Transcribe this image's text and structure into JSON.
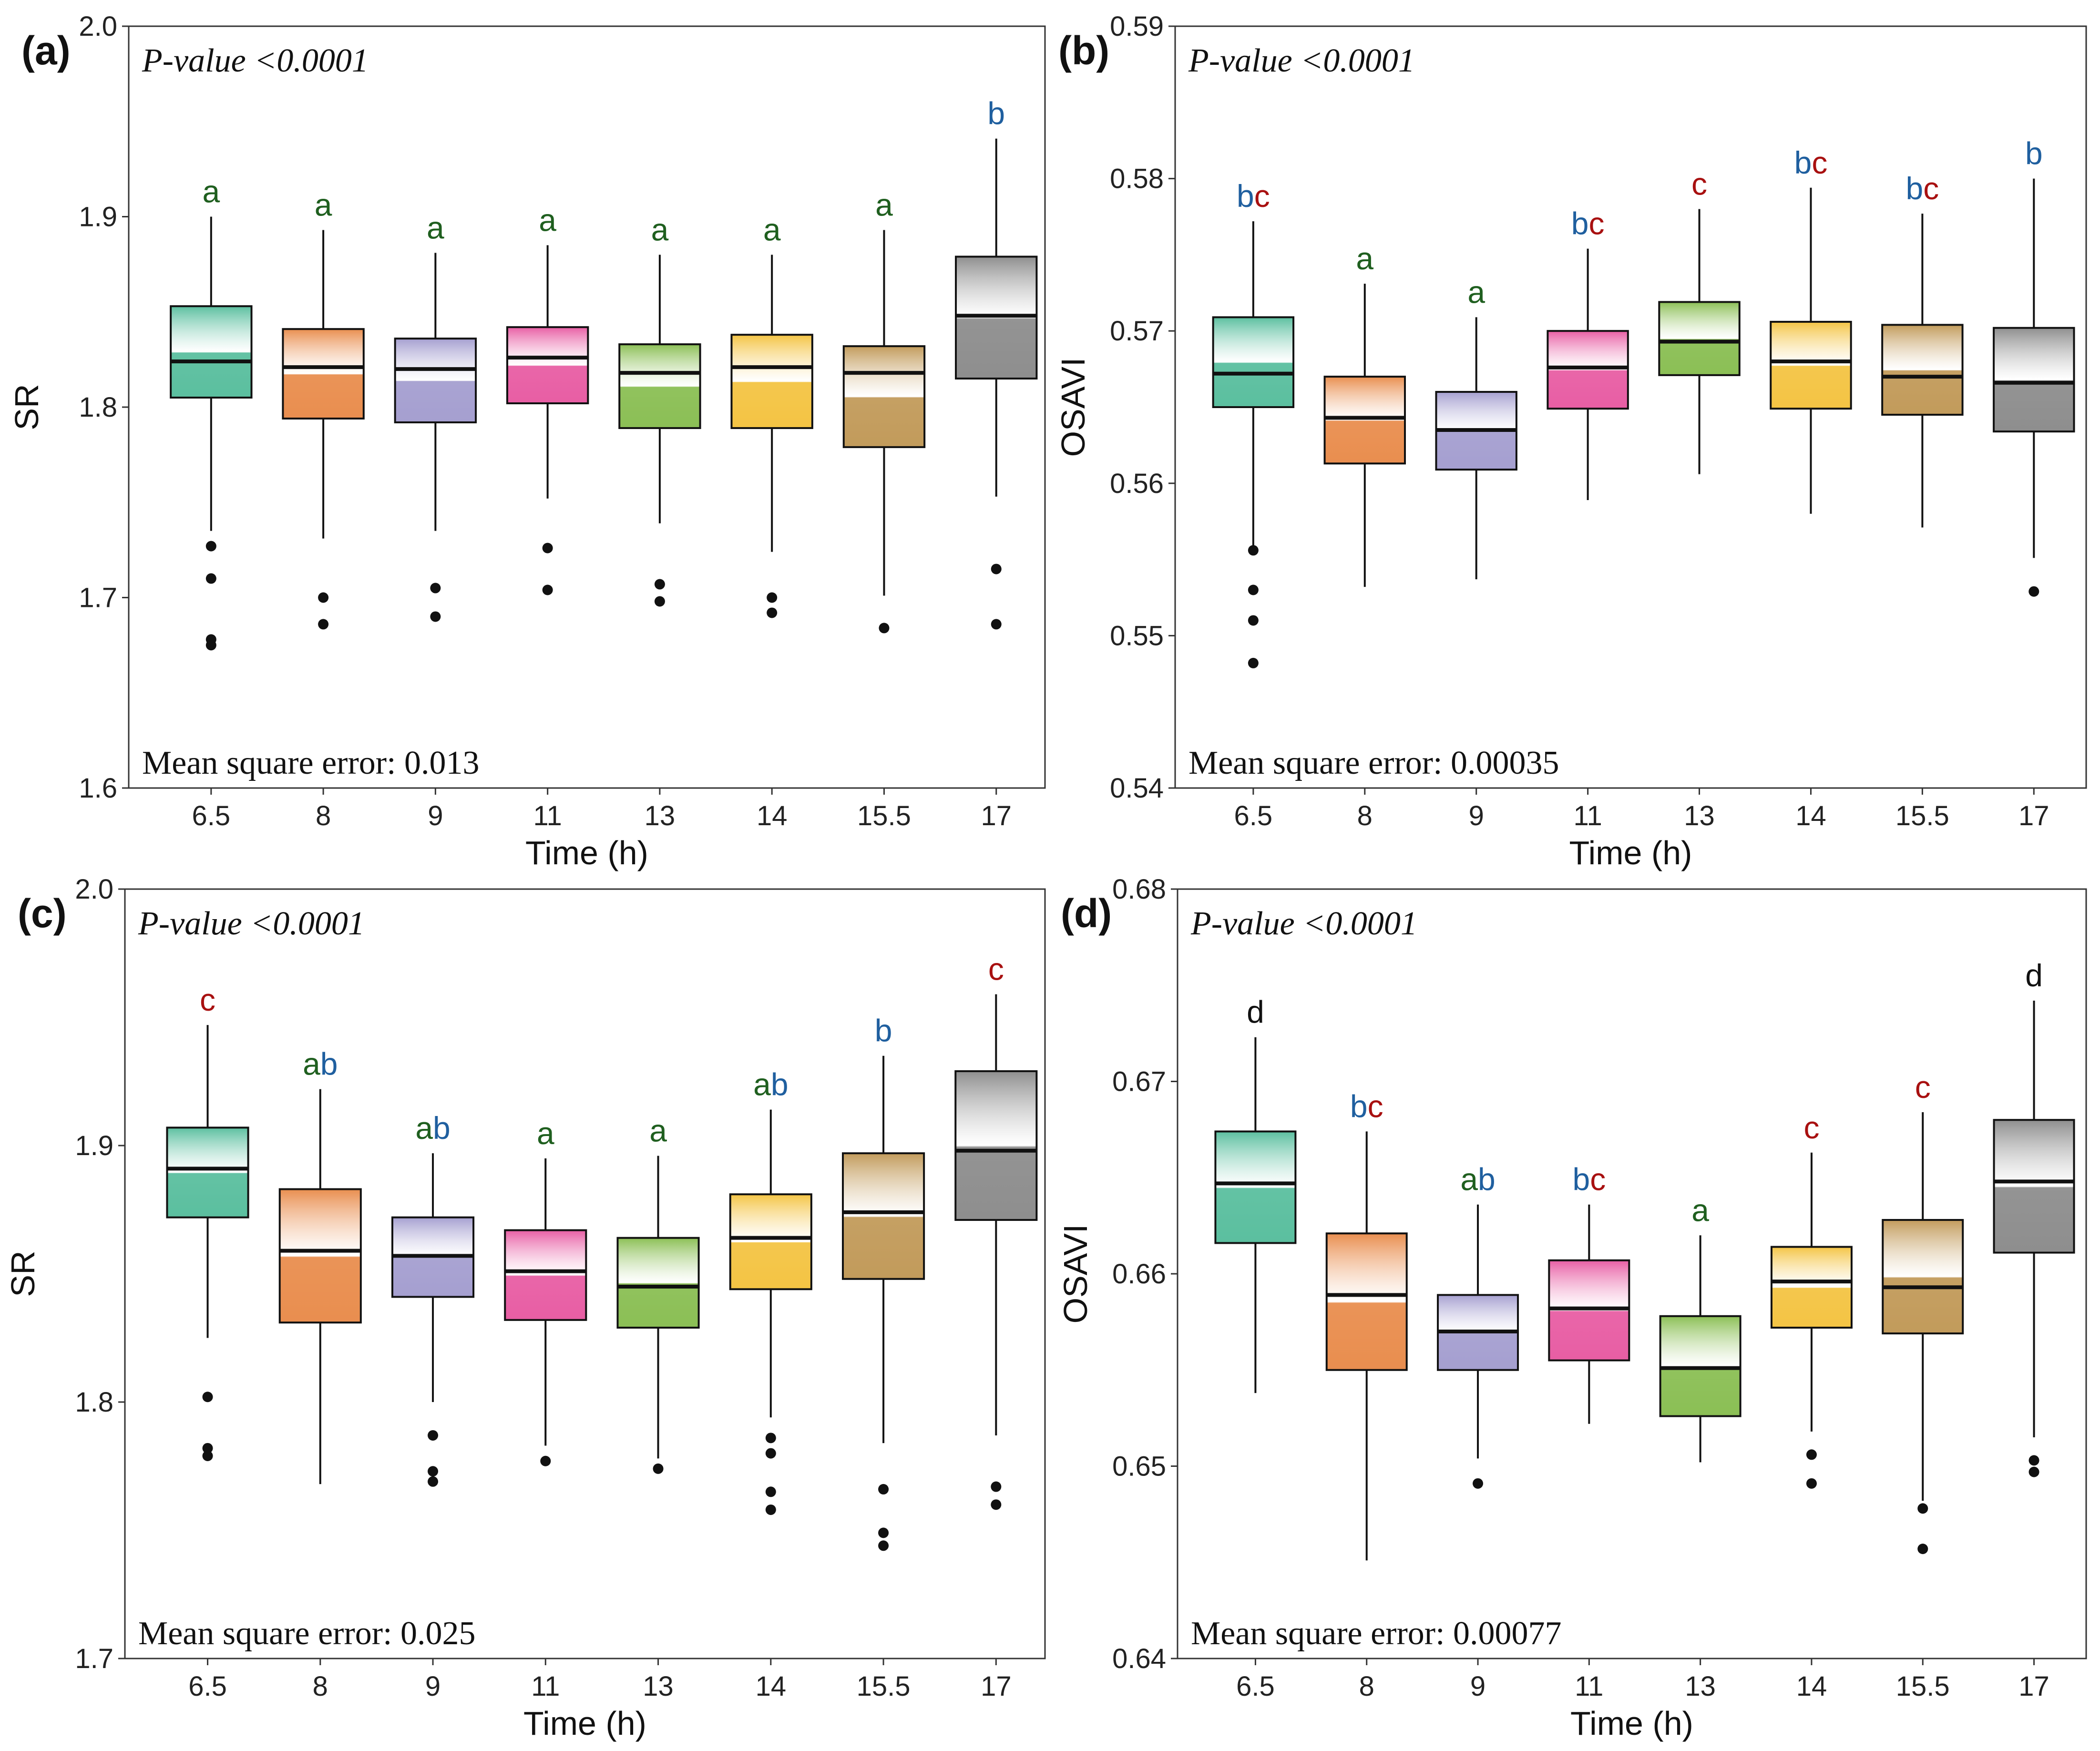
{
  "colors": {
    "boxes": [
      "#5bbf9f",
      "#e98e4f",
      "#a59fd0",
      "#e85ea4",
      "#8bbf55",
      "#f4c444",
      "#c29b5b",
      "#8e8e8e"
    ],
    "letters": {
      "a": "#1f5f1f",
      "b": "#1f5f9f",
      "c": "#a81010",
      "d": "#111111"
    }
  },
  "chart_data": [
    {
      "type": "box",
      "panel_label": "(a)",
      "p_value_label": "P-value  <0.0001",
      "mse_label": "Mean square error: 0.013",
      "xlabel": "Time (h)",
      "ylabel": "SR",
      "categories": [
        "6.5",
        "8",
        "9",
        "11",
        "13",
        "14",
        "15.5",
        "17"
      ],
      "ylim": [
        1.6,
        2.0
      ],
      "yticks": [
        "1.6",
        "1.7",
        "1.8",
        "1.9",
        "2.0"
      ],
      "boxes": [
        {
          "q1": 1.805,
          "median": 1.824,
          "q3": 1.853,
          "low": 1.735,
          "high": 1.9,
          "outliers": [
            1.727,
            1.71,
            1.678,
            1.675
          ],
          "letters": [
            "a"
          ]
        },
        {
          "q1": 1.794,
          "median": 1.821,
          "q3": 1.841,
          "low": 1.731,
          "high": 1.893,
          "outliers": [
            1.7,
            1.686
          ],
          "letters": [
            "a"
          ]
        },
        {
          "q1": 1.792,
          "median": 1.82,
          "q3": 1.836,
          "low": 1.735,
          "high": 1.881,
          "outliers": [
            1.705,
            1.69
          ],
          "letters": [
            "a"
          ]
        },
        {
          "q1": 1.802,
          "median": 1.826,
          "q3": 1.842,
          "low": 1.752,
          "high": 1.885,
          "outliers": [
            1.726,
            1.704
          ],
          "letters": [
            "a"
          ]
        },
        {
          "q1": 1.789,
          "median": 1.818,
          "q3": 1.833,
          "low": 1.739,
          "high": 1.88,
          "outliers": [
            1.707,
            1.698
          ],
          "letters": [
            "a"
          ]
        },
        {
          "q1": 1.789,
          "median": 1.821,
          "q3": 1.838,
          "low": 1.724,
          "high": 1.88,
          "outliers": [
            1.7,
            1.692
          ],
          "letters": [
            "a"
          ]
        },
        {
          "q1": 1.779,
          "median": 1.818,
          "q3": 1.832,
          "low": 1.701,
          "high": 1.893,
          "outliers": [
            1.684
          ],
          "letters": [
            "a"
          ]
        },
        {
          "q1": 1.815,
          "median": 1.848,
          "q3": 1.879,
          "low": 1.753,
          "high": 1.941,
          "outliers": [
            1.715,
            1.686
          ],
          "letters": [
            "b"
          ]
        }
      ]
    },
    {
      "type": "box",
      "panel_label": "(b)",
      "p_value_label": "P-value  <0.0001",
      "mse_label": "Mean square error: 0.00035",
      "xlabel": "Time (h)",
      "ylabel": "OSAVI",
      "categories": [
        "6.5",
        "8",
        "9",
        "11",
        "13",
        "14",
        "15.5",
        "17"
      ],
      "ylim": [
        0.54,
        0.59
      ],
      "yticks": [
        "0.54",
        "0.55",
        "0.56",
        "0.57",
        "0.58",
        "0.59"
      ],
      "boxes": [
        {
          "q1": 0.565,
          "median": 0.5672,
          "q3": 0.5709,
          "low": 0.5557,
          "high": 0.5772,
          "outliers": [
            0.5556,
            0.553,
            0.551,
            0.5482
          ],
          "letters": [
            "b",
            "c"
          ]
        },
        {
          "q1": 0.5613,
          "median": 0.5643,
          "q3": 0.567,
          "low": 0.5532,
          "high": 0.5731,
          "outliers": [],
          "letters": [
            "a"
          ]
        },
        {
          "q1": 0.5609,
          "median": 0.5635,
          "q3": 0.566,
          "low": 0.5537,
          "high": 0.5709,
          "outliers": [],
          "letters": [
            "a"
          ]
        },
        {
          "q1": 0.5649,
          "median": 0.5676,
          "q3": 0.57,
          "low": 0.5589,
          "high": 0.5754,
          "outliers": [],
          "letters": [
            "b",
            "c"
          ]
        },
        {
          "q1": 0.5671,
          "median": 0.5693,
          "q3": 0.5719,
          "low": 0.5606,
          "high": 0.578,
          "outliers": [],
          "letters": [
            "c"
          ]
        },
        {
          "q1": 0.5649,
          "median": 0.568,
          "q3": 0.5706,
          "low": 0.558,
          "high": 0.5794,
          "outliers": [],
          "letters": [
            "b",
            "c"
          ]
        },
        {
          "q1": 0.5645,
          "median": 0.567,
          "q3": 0.5704,
          "low": 0.5571,
          "high": 0.5777,
          "outliers": [],
          "letters": [
            "b",
            "c"
          ]
        },
        {
          "q1": 0.5634,
          "median": 0.5666,
          "q3": 0.5702,
          "low": 0.5551,
          "high": 0.58,
          "outliers": [
            0.5529
          ],
          "letters": [
            "b"
          ]
        }
      ]
    },
    {
      "type": "box",
      "panel_label": "(c)",
      "p_value_label": "P-value  <0.0001",
      "mse_label": "Mean square error: 0.025",
      "xlabel": "Time (h)",
      "ylabel": "SR",
      "categories": [
        "6.5",
        "8",
        "9",
        "11",
        "13",
        "14",
        "15.5",
        "17"
      ],
      "ylim": [
        1.7,
        2.0
      ],
      "yticks": [
        "1.7",
        "1.8",
        "1.9",
        "2.0"
      ],
      "boxes": [
        {
          "q1": 1.872,
          "median": 1.891,
          "q3": 1.907,
          "low": 1.825,
          "high": 1.947,
          "outliers": [
            1.802,
            1.782,
            1.779
          ],
          "letters": [
            "c"
          ]
        },
        {
          "q1": 1.831,
          "median": 1.859,
          "q3": 1.883,
          "low": 1.768,
          "high": 1.922,
          "outliers": [],
          "letters": [
            "a",
            "b"
          ]
        },
        {
          "q1": 1.841,
          "median": 1.857,
          "q3": 1.872,
          "low": 1.8,
          "high": 1.897,
          "outliers": [
            1.787,
            1.773,
            1.769
          ],
          "letters": [
            "a",
            "b"
          ]
        },
        {
          "q1": 1.832,
          "median": 1.851,
          "q3": 1.867,
          "low": 1.783,
          "high": 1.895,
          "outliers": [
            1.777
          ],
          "letters": [
            "a"
          ]
        },
        {
          "q1": 1.829,
          "median": 1.845,
          "q3": 1.864,
          "low": 1.778,
          "high": 1.896,
          "outliers": [
            1.774
          ],
          "letters": [
            "a"
          ]
        },
        {
          "q1": 1.844,
          "median": 1.864,
          "q3": 1.881,
          "low": 1.794,
          "high": 1.914,
          "outliers": [
            1.786,
            1.78,
            1.765,
            1.758
          ],
          "letters": [
            "a",
            "b"
          ]
        },
        {
          "q1": 1.848,
          "median": 1.874,
          "q3": 1.897,
          "low": 1.784,
          "high": 1.935,
          "outliers": [
            1.766,
            1.749,
            1.744
          ],
          "letters": [
            "b"
          ]
        },
        {
          "q1": 1.871,
          "median": 1.898,
          "q3": 1.929,
          "low": 1.787,
          "high": 1.959,
          "outliers": [
            1.767,
            1.76
          ],
          "letters": [
            "c"
          ]
        }
      ]
    },
    {
      "type": "box",
      "panel_label": "(d)",
      "p_value_label": "P-value  <0.0001",
      "mse_label": "Mean square error: 0.00077",
      "xlabel": "Time (h)",
      "ylabel": "OSAVI",
      "categories": [
        "6.5",
        "8",
        "9",
        "11",
        "13",
        "14",
        "15.5",
        "17"
      ],
      "ylim": [
        0.64,
        0.68
      ],
      "yticks": [
        "0.64",
        "0.65",
        "0.66",
        "0.67",
        "0.68"
      ],
      "boxes": [
        {
          "q1": 0.6616,
          "median": 0.6647,
          "q3": 0.6674,
          "low": 0.6538,
          "high": 0.6723,
          "outliers": [],
          "letters": [
            "d"
          ]
        },
        {
          "q1": 0.655,
          "median": 0.6589,
          "q3": 0.6621,
          "low": 0.6451,
          "high": 0.6674,
          "outliers": [],
          "letters": [
            "b",
            "c"
          ]
        },
        {
          "q1": 0.655,
          "median": 0.657,
          "q3": 0.6589,
          "low": 0.6504,
          "high": 0.6636,
          "outliers": [
            0.6491
          ],
          "letters": [
            "a",
            "b"
          ]
        },
        {
          "q1": 0.6555,
          "median": 0.6582,
          "q3": 0.6607,
          "low": 0.6522,
          "high": 0.6636,
          "outliers": [],
          "letters": [
            "b",
            "c"
          ]
        },
        {
          "q1": 0.6526,
          "median": 0.6551,
          "q3": 0.6578,
          "low": 0.6502,
          "high": 0.662,
          "outliers": [],
          "letters": [
            "a"
          ]
        },
        {
          "q1": 0.6572,
          "median": 0.6596,
          "q3": 0.6614,
          "low": 0.6518,
          "high": 0.6663,
          "outliers": [
            0.6506,
            0.6491
          ],
          "letters": [
            "c"
          ]
        },
        {
          "q1": 0.6569,
          "median": 0.6593,
          "q3": 0.6628,
          "low": 0.6482,
          "high": 0.6684,
          "outliers": [
            0.6478,
            0.6457
          ],
          "letters": [
            "c"
          ]
        },
        {
          "q1": 0.6611,
          "median": 0.6648,
          "q3": 0.668,
          "low": 0.6515,
          "high": 0.6742,
          "outliers": [
            0.6503,
            0.6497
          ],
          "letters": [
            "d"
          ]
        }
      ]
    }
  ]
}
